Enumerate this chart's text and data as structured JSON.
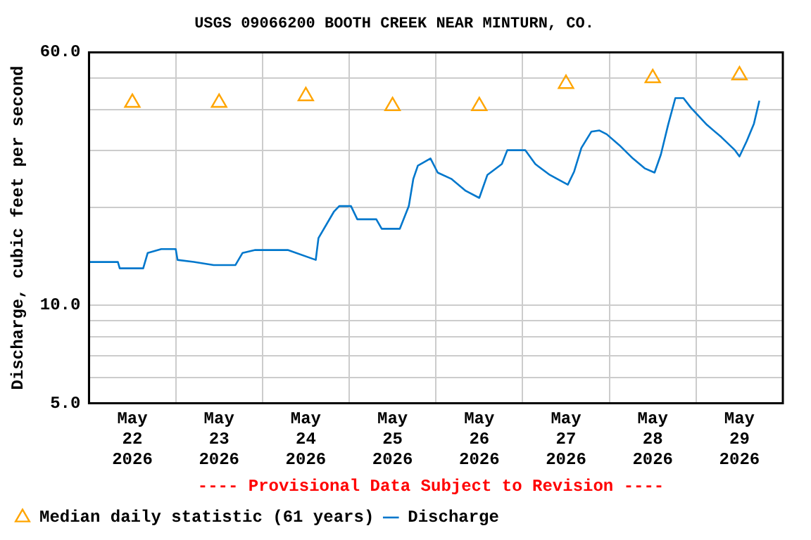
{
  "chart_data": {
    "type": "line",
    "title": "USGS 09066200 BOOTH CREEK NEAR MINTURN, CO.",
    "ylabel": "Discharge, cubic feet per second",
    "log": "y",
    "grid": true,
    "legend": "bottom",
    "xlim": [
      "2026-05-22T00:00",
      "2026-05-30T00:00"
    ],
    "xticks": [
      {
        "value": "2026-05-22T12:00",
        "label": "May 22 2026"
      },
      {
        "value": "2026-05-23T00:00",
        "label": null
      },
      {
        "value": "2026-05-23T12:00",
        "label": "May 23 2026"
      },
      {
        "value": "2026-05-24T00:00",
        "label": null
      },
      {
        "value": "2026-05-24T12:00",
        "label": "May 24 2026"
      },
      {
        "value": "2026-05-25T00:00",
        "label": null
      },
      {
        "value": "2026-05-25T12:00",
        "label": "May 25 2026"
      },
      {
        "value": "2026-05-26T00:00",
        "label": null
      },
      {
        "value": "2026-05-26T12:00",
        "label": "May 26 2026"
      },
      {
        "value": "2026-05-27T00:00",
        "label": null
      },
      {
        "value": "2026-05-27T12:00",
        "label": "May 27 2026"
      },
      {
        "value": "2026-05-28T00:00",
        "label": null
      },
      {
        "value": "2026-05-28T12:00",
        "label": "May 28 2026"
      },
      {
        "value": "2026-05-29T00:00",
        "label": null
      },
      {
        "value": "2026-05-29T12:00",
        "label": "May 29 2026"
      }
    ],
    "ylim": [
      5,
      60
    ],
    "yticks": [
      {
        "value": 5,
        "label": "5.0"
      },
      {
        "value": 6,
        "label": null
      },
      {
        "value": 7,
        "label": null
      },
      {
        "value": 8,
        "label": null
      },
      {
        "value": 9,
        "label": null
      },
      {
        "value": 10,
        "label": "10.0"
      },
      {
        "value": 20,
        "label": null
      },
      {
        "value": 30,
        "label": null
      },
      {
        "value": 40,
        "label": null
      },
      {
        "value": 50,
        "label": null
      },
      {
        "value": 60,
        "label": "60.0"
      }
    ],
    "annotations": [
      "---- Provisional Data Subject to Revision ----"
    ],
    "series": [
      {
        "name": "Median daily statistic (61 years)",
        "type": "scatter",
        "marker": "triangle",
        "color": "#ffa500",
        "x": [
          "2026-05-22T12:00",
          "2026-05-23T12:00",
          "2026-05-24T12:00",
          "2026-05-25T12:00",
          "2026-05-26T12:00",
          "2026-05-27T12:00",
          "2026-05-28T12:00",
          "2026-05-29T12:00"
        ],
        "values": [
          42,
          42,
          44,
          41,
          41,
          48,
          50,
          51
        ]
      },
      {
        "name": "Discharge",
        "marker": "none",
        "color": "#0077cc",
        "x": [
          "2026-05-22T00:00",
          "2026-05-22T08:00",
          "2026-05-22T08:30",
          "2026-05-22T15:00",
          "2026-05-22T16:15",
          "2026-05-22T20:00",
          "2026-05-23T00:00",
          "2026-05-23T00:30",
          "2026-05-23T05:00",
          "2026-05-23T10:30",
          "2026-05-23T16:30",
          "2026-05-23T18:30",
          "2026-05-23T22:00",
          "2026-05-24T07:00",
          "2026-05-24T14:45",
          "2026-05-24T15:30",
          "2026-05-24T19:45",
          "2026-05-24T21:15",
          "2026-05-25T00:30",
          "2026-05-25T02:15",
          "2026-05-25T07:30",
          "2026-05-25T09:00",
          "2026-05-25T14:00",
          "2026-05-25T16:30",
          "2026-05-25T17:45",
          "2026-05-25T19:00",
          "2026-05-25T22:30",
          "2026-05-26T00:30",
          "2026-05-26T04:15",
          "2026-05-26T08:15",
          "2026-05-26T12:00",
          "2026-05-26T14:15",
          "2026-05-26T18:15",
          "2026-05-26T19:45",
          "2026-05-27T00:45",
          "2026-05-27T03:30",
          "2026-05-27T07:30",
          "2026-05-27T12:30",
          "2026-05-27T14:15",
          "2026-05-27T16:15",
          "2026-05-27T19:00",
          "2026-05-27T21:15",
          "2026-05-27T23:15",
          "2026-05-28T02:45",
          "2026-05-28T06:30",
          "2026-05-28T09:45",
          "2026-05-28T12:30",
          "2026-05-28T14:15",
          "2026-05-28T16:15",
          "2026-05-28T18:15",
          "2026-05-28T20:30",
          "2026-05-28T22:30",
          "2026-05-29T03:00",
          "2026-05-29T07:00",
          "2026-05-29T10:45",
          "2026-05-29T12:00",
          "2026-05-29T14:00",
          "2026-05-29T16:00",
          "2026-05-29T17:30"
        ],
        "values": [
          13.6,
          13.6,
          13.0,
          13.0,
          14.5,
          14.9,
          14.9,
          13.8,
          13.6,
          13.3,
          13.3,
          14.5,
          14.8,
          14.8,
          13.8,
          16.1,
          19.4,
          20.2,
          20.2,
          18.4,
          18.4,
          17.2,
          17.2,
          20.2,
          24.5,
          26.9,
          28.3,
          25.6,
          24.5,
          22.5,
          21.4,
          25.2,
          27.2,
          30.0,
          30.0,
          27.2,
          25.2,
          23.5,
          25.8,
          30.5,
          34.2,
          34.5,
          33.6,
          31.1,
          28.3,
          26.4,
          25.6,
          29.1,
          35.9,
          43.4,
          43.4,
          40.6,
          35.9,
          32.9,
          30.0,
          28.7,
          32.0,
          36.2,
          42.6
        ]
      }
    ]
  }
}
